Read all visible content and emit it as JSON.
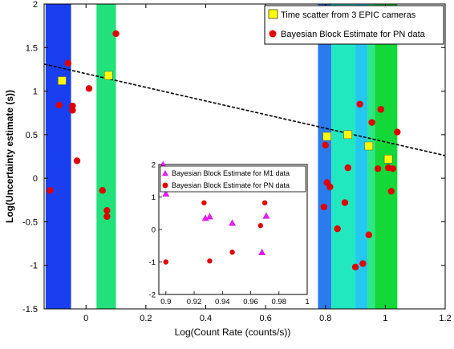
{
  "chart_data": [
    {
      "type": "scatter",
      "title": "",
      "xlabel": "Log(Count Rate (counts/s))",
      "ylabel": "Log(Uncertainty estimate (s))",
      "xlim": [
        -0.14,
        1.2
      ],
      "ylim": [
        -1.5,
        2
      ],
      "x_ticks": [
        0,
        0.2,
        0.4,
        0.6,
        0.8,
        1,
        1.2
      ],
      "y_ticks": [
        -1.5,
        -1,
        -0.5,
        0,
        0.5,
        1,
        1.5,
        2
      ],
      "x_tick_labels": [
        "0",
        "0.2",
        "0.4",
        "0.6",
        "0.8",
        "1",
        "1.2"
      ],
      "y_tick_labels": [
        "-1.5",
        "-1",
        "-0.5",
        "0",
        "0.5",
        "1",
        "1.5",
        "2"
      ],
      "grid": false,
      "legend_position": "top-right",
      "bands": [
        {
          "x0": -0.135,
          "x1": -0.05,
          "color": "#1a3ff0"
        },
        {
          "x0": 0.035,
          "x1": 0.1,
          "color": "#22e07a"
        },
        {
          "x0": 0.775,
          "x1": 0.82,
          "color": "#2a7bec"
        },
        {
          "x0": 0.82,
          "x1": 0.9,
          "color": "#22e8c0"
        },
        {
          "x0": 0.9,
          "x1": 0.94,
          "color": "#24c8f0"
        },
        {
          "x0": 0.94,
          "x1": 0.965,
          "color": "#2ce88a"
        },
        {
          "x0": 0.965,
          "x1": 1.04,
          "color": "#12d838"
        }
      ],
      "series": [
        {
          "name": "Time scatter from 3 EPIC cameras",
          "marker": "square",
          "color": "#ffff00",
          "points": [
            [
              -0.08,
              1.12
            ],
            [
              0.075,
              1.18
            ],
            [
              0.805,
              0.48
            ],
            [
              0.875,
              0.5
            ],
            [
              0.945,
              0.37
            ],
            [
              1.01,
              0.22
            ]
          ]
        },
        {
          "name": "Bayesian Block Estimate for PN data",
          "marker": "circle",
          "color": "#e00000",
          "points": [
            [
              -0.12,
              -0.14
            ],
            [
              -0.09,
              0.84
            ],
            [
              -0.06,
              1.32
            ],
            [
              -0.045,
              0.83
            ],
            [
              -0.045,
              0.78
            ],
            [
              -0.03,
              0.2
            ],
            [
              0.01,
              1.03
            ],
            [
              0.055,
              -0.14
            ],
            [
              0.07,
              -0.37
            ],
            [
              0.07,
              -0.44
            ],
            [
              0.1,
              1.66
            ],
            [
              0.795,
              -0.33
            ],
            [
              0.8,
              0.38
            ],
            [
              0.805,
              -0.05
            ],
            [
              0.815,
              -0.1
            ],
            [
              0.84,
              -0.58
            ],
            [
              0.865,
              -0.28
            ],
            [
              0.875,
              0.12
            ],
            [
              0.9,
              -1.02
            ],
            [
              0.915,
              0.85
            ],
            [
              0.925,
              -0.98
            ],
            [
              0.945,
              -0.65
            ],
            [
              0.955,
              0.64
            ],
            [
              0.975,
              0.11
            ],
            [
              0.985,
              0.79
            ],
            [
              1.01,
              0.12
            ],
            [
              1.02,
              -0.15
            ],
            [
              1.025,
              0.11
            ],
            [
              1.04,
              0.53
            ]
          ]
        }
      ],
      "trendline": {
        "x": [
          -0.14,
          1.2
        ],
        "y": [
          1.31,
          0.26
        ],
        "style": "dashed",
        "color": "#000000"
      }
    },
    {
      "type": "scatter",
      "title": "",
      "placement": "inset",
      "xlim": [
        0.895,
        1.0
      ],
      "ylim": [
        -2,
        2
      ],
      "x_ticks": [
        0.9,
        0.92,
        0.94,
        0.96,
        0.98,
        1
      ],
      "y_ticks": [
        -2,
        -1,
        0,
        1,
        2
      ],
      "x_tick_labels": [
        "0.9",
        "0.92",
        "0.94",
        "0.96",
        "0.98",
        "1"
      ],
      "y_tick_labels": [
        "-2",
        "-1",
        "0",
        "1",
        "2"
      ],
      "grid": false,
      "legend_position": "top",
      "series": [
        {
          "name": "Bayesian Block Estimate for M1 data",
          "marker": "triangle",
          "color": "#e020e8",
          "points": [
            [
              0.898,
              2.0
            ],
            [
              0.9,
              1.1
            ],
            [
              0.928,
              0.35
            ],
            [
              0.931,
              0.4
            ],
            [
              0.947,
              0.2
            ],
            [
              0.968,
              -0.7
            ],
            [
              0.971,
              0.42
            ]
          ]
        },
        {
          "name": "Bayesian Block Estimate for PN data",
          "marker": "circle",
          "color": "#e00000",
          "points": [
            [
              0.9,
              -1.0
            ],
            [
              0.927,
              0.82
            ],
            [
              0.931,
              -0.97
            ],
            [
              0.947,
              -0.7
            ],
            [
              0.967,
              0.12
            ],
            [
              0.97,
              0.82
            ]
          ]
        }
      ]
    }
  ]
}
